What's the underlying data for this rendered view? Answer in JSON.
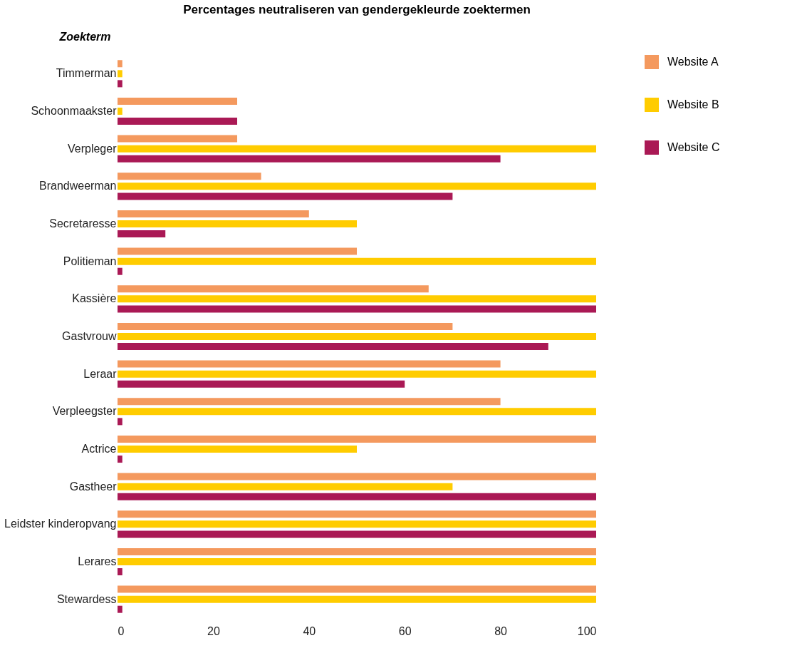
{
  "chart_data": {
    "type": "bar",
    "orientation": "horizontal",
    "title": "Percentages neutraliseren van gendergekleurde zoektermen",
    "ylabel": "Zoekterm",
    "categories": [
      "Timmerman",
      "Schoonmaakster",
      "Verpleger",
      "Brandweerman",
      "Secretaresse",
      "Politieman",
      "Kassière",
      "Gastvrouw",
      "Leraar",
      "Verpleegster",
      "Actrice",
      "Gastheer",
      "Leidster kinderopvang",
      "Lerares",
      "Stewardess"
    ],
    "series": [
      {
        "name": "Website A",
        "color": "#f4995e",
        "values": [
          1,
          25,
          25,
          30,
          40,
          50,
          65,
          70,
          80,
          80,
          100,
          100,
          100,
          100,
          100
        ]
      },
      {
        "name": "Website B",
        "color": "#ffcc00",
        "values": [
          1,
          1,
          100,
          100,
          50,
          100,
          100,
          100,
          100,
          100,
          50,
          70,
          100,
          100,
          100
        ]
      },
      {
        "name": "Website C",
        "color": "#aa1955",
        "values": [
          1,
          25,
          80,
          70,
          10,
          1,
          100,
          90,
          60,
          1,
          1,
          100,
          100,
          1,
          1
        ]
      }
    ],
    "xlim": [
      0,
      100
    ],
    "xticks": [
      0,
      20,
      40,
      60,
      80,
      100
    ],
    "grid": false,
    "legend": "top right"
  }
}
